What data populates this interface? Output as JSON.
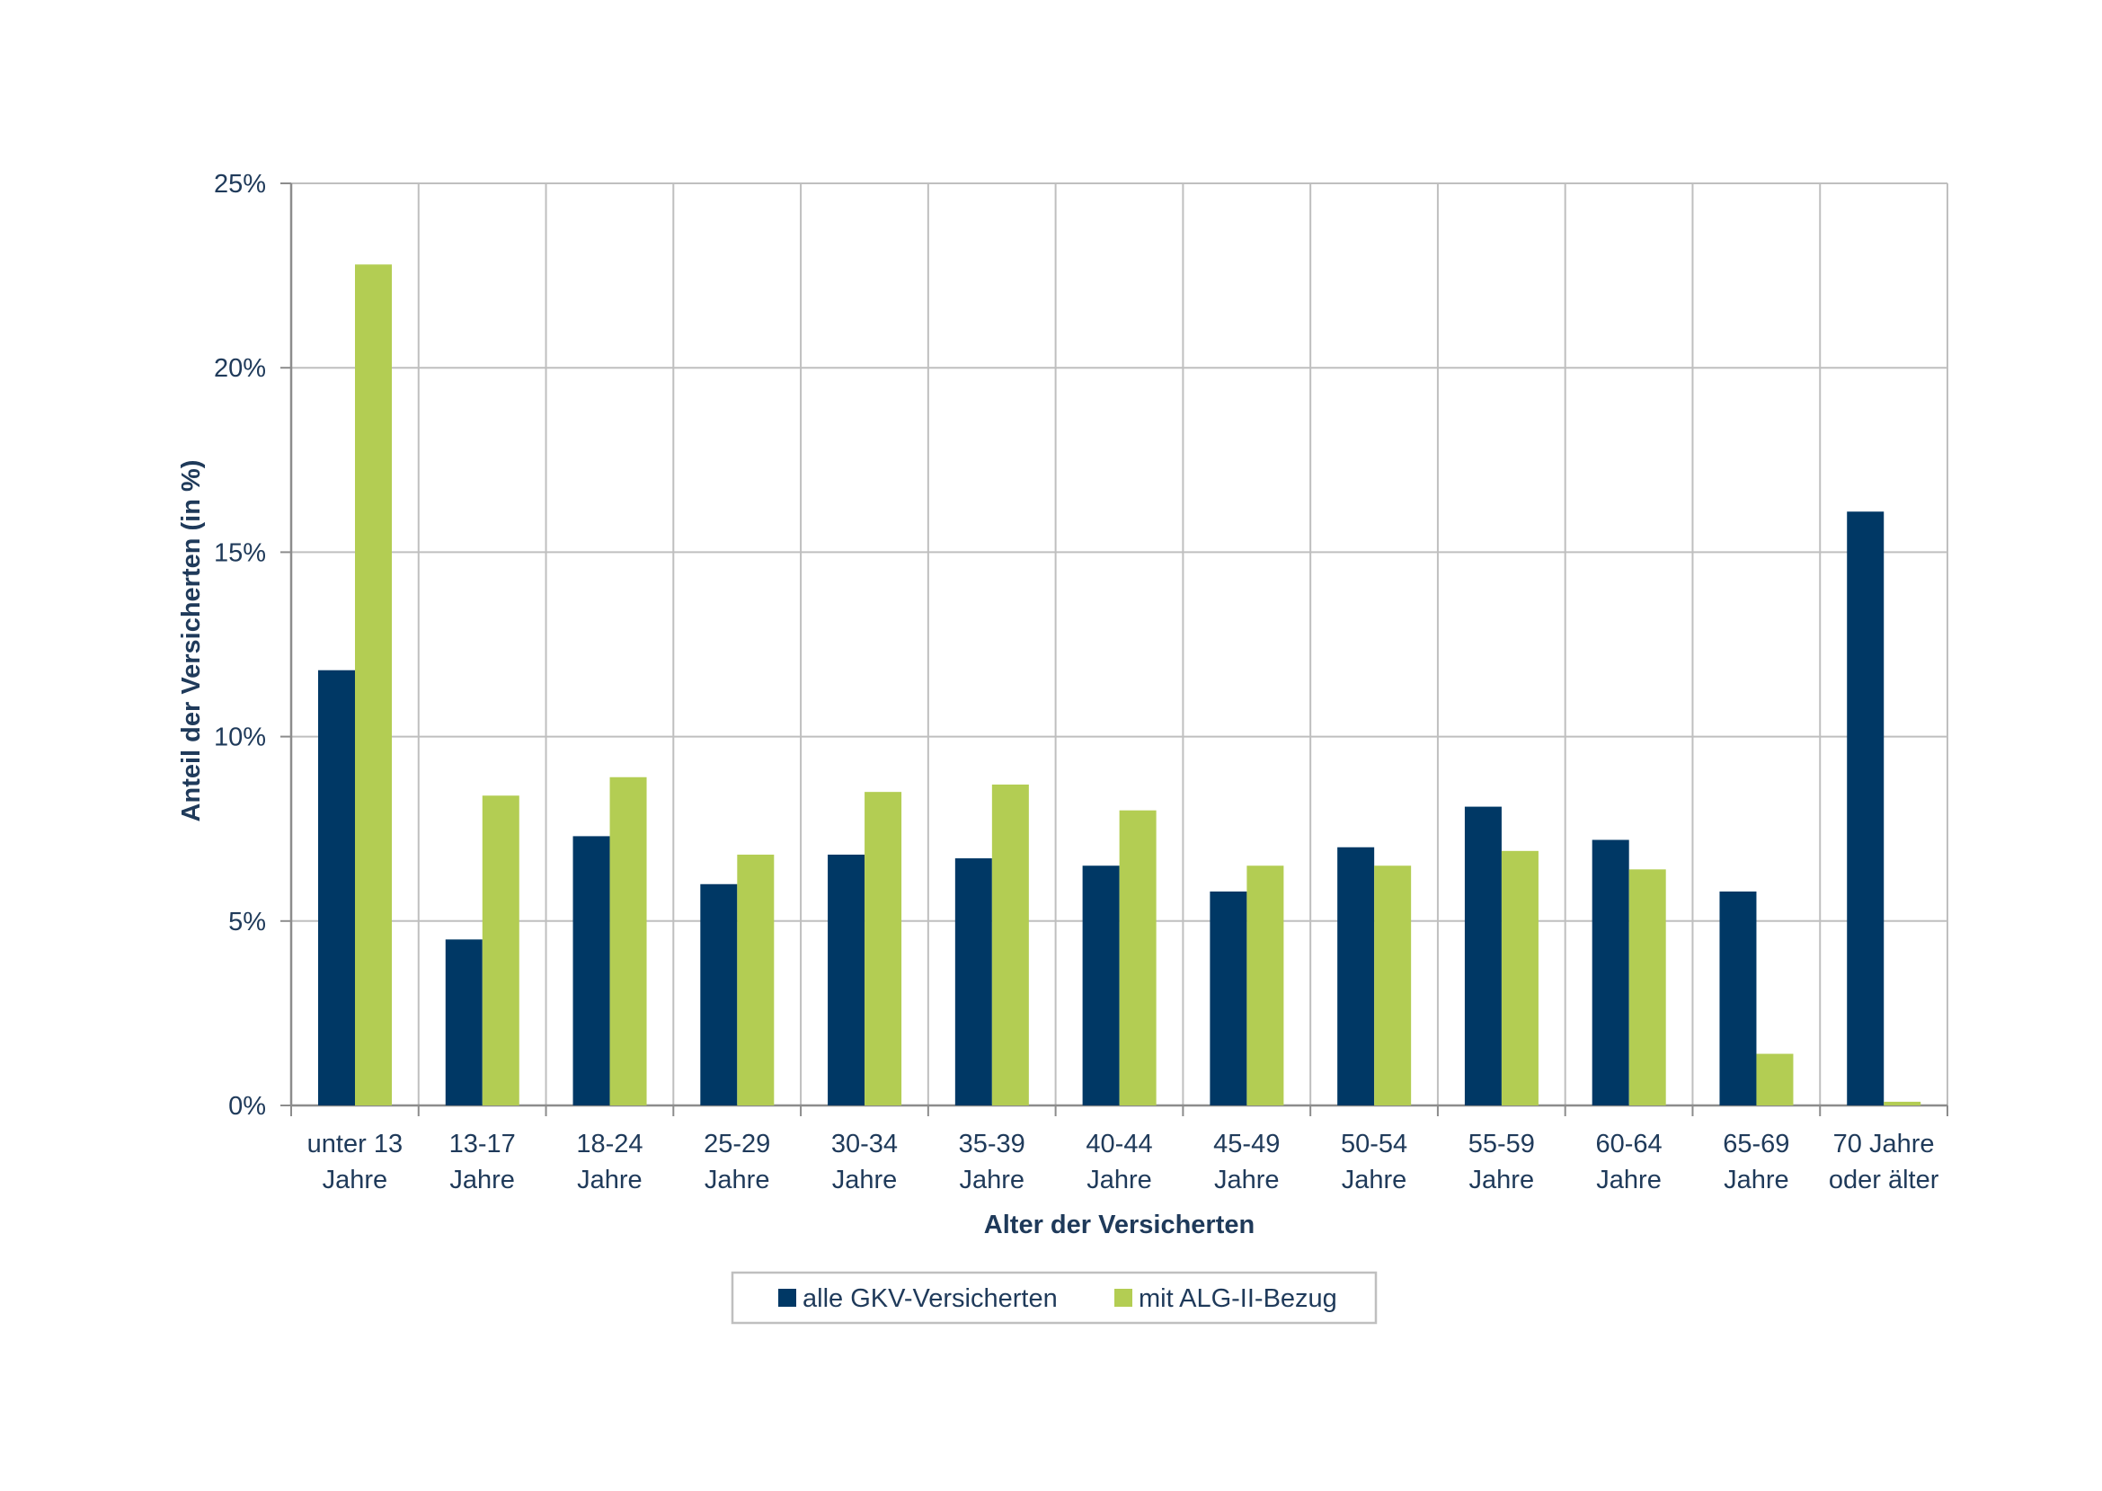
{
  "chart_data": {
    "type": "bar",
    "xlabel": "Alter der Versicherten",
    "ylabel": "Anteil der Versicherten (in %)",
    "ylim": [
      0,
      25
    ],
    "yticks": [
      0,
      5,
      10,
      15,
      20,
      25
    ],
    "ytick_labels": [
      "0%",
      "5%",
      "10%",
      "15%",
      "20%",
      "25%"
    ],
    "grid": true,
    "legend_position": "bottom",
    "categories": [
      [
        "unter 13",
        "Jahre"
      ],
      [
        "13-17",
        "Jahre"
      ],
      [
        "18-24",
        "Jahre"
      ],
      [
        "25-29",
        "Jahre"
      ],
      [
        "30-34",
        "Jahre"
      ],
      [
        "35-39",
        "Jahre"
      ],
      [
        "40-44",
        "Jahre"
      ],
      [
        "45-49",
        "Jahre"
      ],
      [
        "50-54",
        "Jahre"
      ],
      [
        "55-59",
        "Jahre"
      ],
      [
        "60-64",
        "Jahre"
      ],
      [
        "65-69",
        "Jahre"
      ],
      [
        "70 Jahre",
        "oder älter"
      ]
    ],
    "series": [
      {
        "name": "alle GKV-Versicherten",
        "color": "#003865",
        "values": [
          11.8,
          4.5,
          7.3,
          6.0,
          6.8,
          6.7,
          6.5,
          5.8,
          7.0,
          8.1,
          7.2,
          5.8,
          16.1
        ]
      },
      {
        "name": "mit ALG-II-Bezug",
        "color": "#b3cd53",
        "values": [
          22.8,
          8.4,
          8.9,
          6.8,
          8.5,
          8.7,
          8.0,
          6.5,
          6.5,
          6.9,
          6.4,
          1.4,
          0.1
        ]
      }
    ]
  },
  "colors": {
    "text": "#1f3a5a",
    "grid": "#bfbfbf",
    "axis": "#8c8c8c",
    "legend_border": "#bfbfbf"
  }
}
